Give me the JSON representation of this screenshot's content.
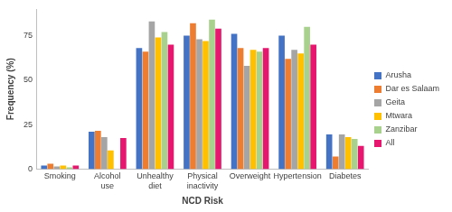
{
  "chart_data": {
    "type": "bar",
    "x_label": "NCD Risk",
    "y_label": "Frequency (%)",
    "categories": [
      "Smoking",
      "Alcohol use",
      "Unhealthy diet",
      "Physical inactivity",
      "Overweight",
      "Hypertension",
      "Diabetes"
    ],
    "series": [
      {
        "name": "Arusha",
        "color": "#4472c4",
        "values": [
          2,
          21,
          68,
          75,
          76,
          75,
          19.5
        ]
      },
      {
        "name": "Dar es Salaam",
        "color": "#ed7d31",
        "values": [
          3,
          21.5,
          66,
          82,
          68,
          62,
          7
        ]
      },
      {
        "name": "Geita",
        "color": "#a5a5a5",
        "values": [
          1.5,
          18,
          83,
          73,
          58,
          67,
          19.5
        ]
      },
      {
        "name": "Mtwara",
        "color": "#ffc000",
        "values": [
          2,
          10.5,
          74,
          72,
          67,
          65,
          18
        ]
      },
      {
        "name": "Zanzibar",
        "color": "#a9d18e",
        "values": [
          1,
          0,
          77,
          84,
          66,
          80,
          17
        ]
      },
      {
        "name": "All",
        "color": "#e6176e",
        "values": [
          2,
          17.5,
          70,
          79,
          68,
          70,
          13
        ]
      }
    ],
    "ylim": [
      0,
      90
    ],
    "yticks": [
      0,
      25,
      50,
      75
    ],
    "grid": false,
    "legend": "right"
  }
}
